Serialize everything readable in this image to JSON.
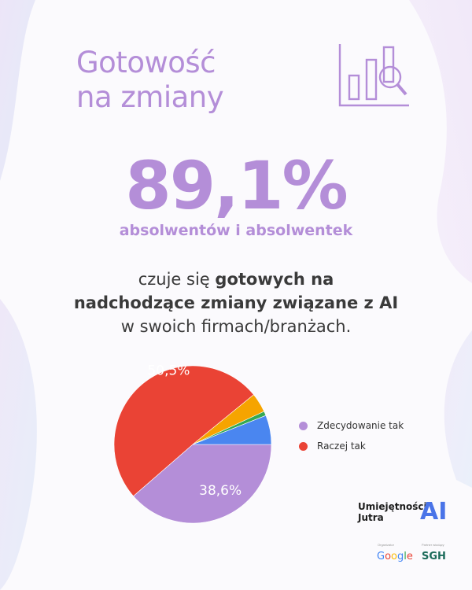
{
  "heading": {
    "line1": "Gotowość",
    "line2": "na zmiany"
  },
  "stat": {
    "value": "89,1%",
    "subject": "absolwentów i absolwentek"
  },
  "description": {
    "pre": "czuje się ",
    "bold1": "gotowych na",
    "bold2": "nadchodzące zmiany związane z AI",
    "post": "w swoich firmach/branżach."
  },
  "colors": {
    "accent": "#b48ed8",
    "red": "#ea4335",
    "orange": "#f6a400",
    "green": "#34a853",
    "blue": "#4a86f0"
  },
  "chart_data": {
    "type": "pie",
    "title": "",
    "slices": [
      {
        "name": "Zdecydowanie tak",
        "value": 38.6,
        "label": "38,6%",
        "color": "#b48ed8"
      },
      {
        "name": "Raczej tak",
        "value": 50.5,
        "label": "50,5%",
        "color": "#ea4335"
      },
      {
        "name": "",
        "value": 4.0,
        "label": "",
        "color": "#f6a400"
      },
      {
        "name": "",
        "value": 0.9,
        "label": "",
        "color": "#34a853"
      },
      {
        "name": "",
        "value": 6.0,
        "label": "",
        "color": "#4a86f0"
      }
    ],
    "legend": [
      "Zdecydowanie tak",
      "Raczej tak"
    ],
    "legend_placement": "right"
  },
  "branding": {
    "line1": "Umiejętności",
    "line2": "Jutra",
    "ai": "AI",
    "organizer_label": "Organizator",
    "partner_label": "Partner wiodący",
    "google": "Google",
    "sgh": "SGH"
  },
  "icons": {
    "header": "bar-chart-magnifier-icon"
  }
}
